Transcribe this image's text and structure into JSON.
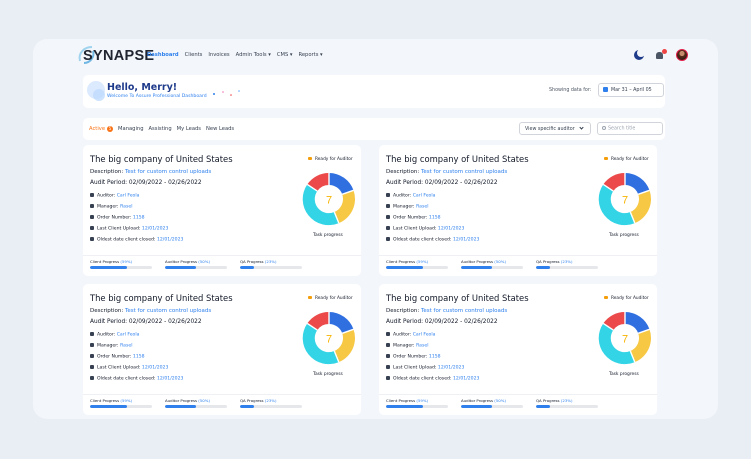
{
  "brand": "SYNAPSE",
  "nav": [
    "Dashboard",
    "Clients",
    "Invoices",
    "Admin Tools ▾",
    "CMS ▾",
    "Reports ▾"
  ],
  "welcome": {
    "title": "Hello, Merry!",
    "subtitle": "Welcome To Assure Professional Dashboard",
    "showing_label": "Showing data for:",
    "date_range": "Mar 31 – April 05"
  },
  "tabs": {
    "active_label": "Active",
    "active_count": "5",
    "items": [
      "Managing",
      "Assisting",
      "My Leads",
      "New Leads"
    ]
  },
  "filters": {
    "auditor_select": "View specific auditor",
    "search_placeholder": "Search title"
  },
  "colors": {
    "accent": "#2f80ed",
    "donut_blue": "#2f6fe0",
    "donut_yellow": "#f7c844",
    "donut_cyan": "#33d4e5",
    "donut_red": "#ec4a4a"
  },
  "cards": [
    {
      "title": "The big company of United States",
      "desc_label": "Description:",
      "desc_value": "Test for custom control uploads",
      "audit_period": "Audit Period: 02/09/2022 - 02/26/2022",
      "auditor_label": "Auditor:",
      "auditor_value": "Carl Feola",
      "manager_label": "Manager:",
      "manager_value": "Rasel",
      "order_label": "Order Number:",
      "order_value": "1158",
      "upload_label": "Last Client Upload:",
      "upload_value": "12/01/2023",
      "oldest_label": "Oldest date client closed:",
      "oldest_value": "12/01/2023",
      "status": "Ready for Auditor",
      "task_count": "7",
      "task_label": "Task progress",
      "client_label": "Client Progress",
      "client_pct": "(59%)",
      "client_value": 59,
      "auditor_prog_label": "Auditor Progress",
      "auditor_pct": "(50%)",
      "auditor_prog_value": 50,
      "qa_label": "QA Progress",
      "qa_pct": "(23%)",
      "qa_value": 23
    },
    {
      "title": "The big company of United States",
      "desc_label": "Description:",
      "desc_value": "Test for custom control uploads",
      "audit_period": "Audit Period: 02/09/2022 - 02/26/2022",
      "auditor_label": "Auditor:",
      "auditor_value": "Carl Feola",
      "manager_label": "Manager:",
      "manager_value": "Rasel",
      "order_label": "Order Number:",
      "order_value": "1158",
      "upload_label": "Last Client Upload:",
      "upload_value": "12/01/2023",
      "oldest_label": "Oldest date client closed:",
      "oldest_value": "12/01/2023",
      "status": "Ready for Auditor",
      "task_count": "7",
      "task_label": "Task progress",
      "client_label": "Client Progress",
      "client_pct": "(59%)",
      "client_value": 59,
      "auditor_prog_label": "Auditor Progress",
      "auditor_pct": "(50%)",
      "auditor_prog_value": 50,
      "qa_label": "QA Progress",
      "qa_pct": "(23%)",
      "qa_value": 23
    },
    {
      "title": "The big company of United States",
      "desc_label": "Description:",
      "desc_value": "Test for custom control uploads",
      "audit_period": "Audit Period: 02/09/2022 - 02/26/2022",
      "auditor_label": "Auditor:",
      "auditor_value": "Carl Feola",
      "manager_label": "Manager:",
      "manager_value": "Rasel",
      "order_label": "Order Number:",
      "order_value": "1158",
      "upload_label": "Last Client Upload:",
      "upload_value": "12/01/2023",
      "oldest_label": "Oldest date client closed:",
      "oldest_value": "12/01/2023",
      "status": "Ready for Auditor",
      "task_count": "7",
      "task_label": "Task progress",
      "client_label": "Client Progress",
      "client_pct": "(59%)",
      "client_value": 59,
      "auditor_prog_label": "Auditor Progress",
      "auditor_pct": "(50%)",
      "auditor_prog_value": 50,
      "qa_label": "QA Progress",
      "qa_pct": "(23%)",
      "qa_value": 23
    },
    {
      "title": "The big company of United States",
      "desc_label": "Description:",
      "desc_value": "Test for custom control uploads",
      "audit_period": "Audit Period: 02/09/2022 - 02/26/2022",
      "auditor_label": "Auditor:",
      "auditor_value": "Carl Feola",
      "manager_label": "Manager:",
      "manager_value": "Rasel",
      "order_label": "Order Number:",
      "order_value": "1158",
      "upload_label": "Last Client Upload:",
      "upload_value": "12/01/2023",
      "oldest_label": "Oldest date client closed:",
      "oldest_value": "12/01/2023",
      "status": "Ready for Auditor",
      "task_count": "7",
      "task_label": "Task progress",
      "client_label": "Client Progress",
      "client_pct": "(59%)",
      "client_value": 59,
      "auditor_prog_label": "Auditor Progress",
      "auditor_pct": "(50%)",
      "auditor_prog_value": 50,
      "qa_label": "QA Progress",
      "qa_pct": "(23%)",
      "qa_value": 23
    }
  ]
}
